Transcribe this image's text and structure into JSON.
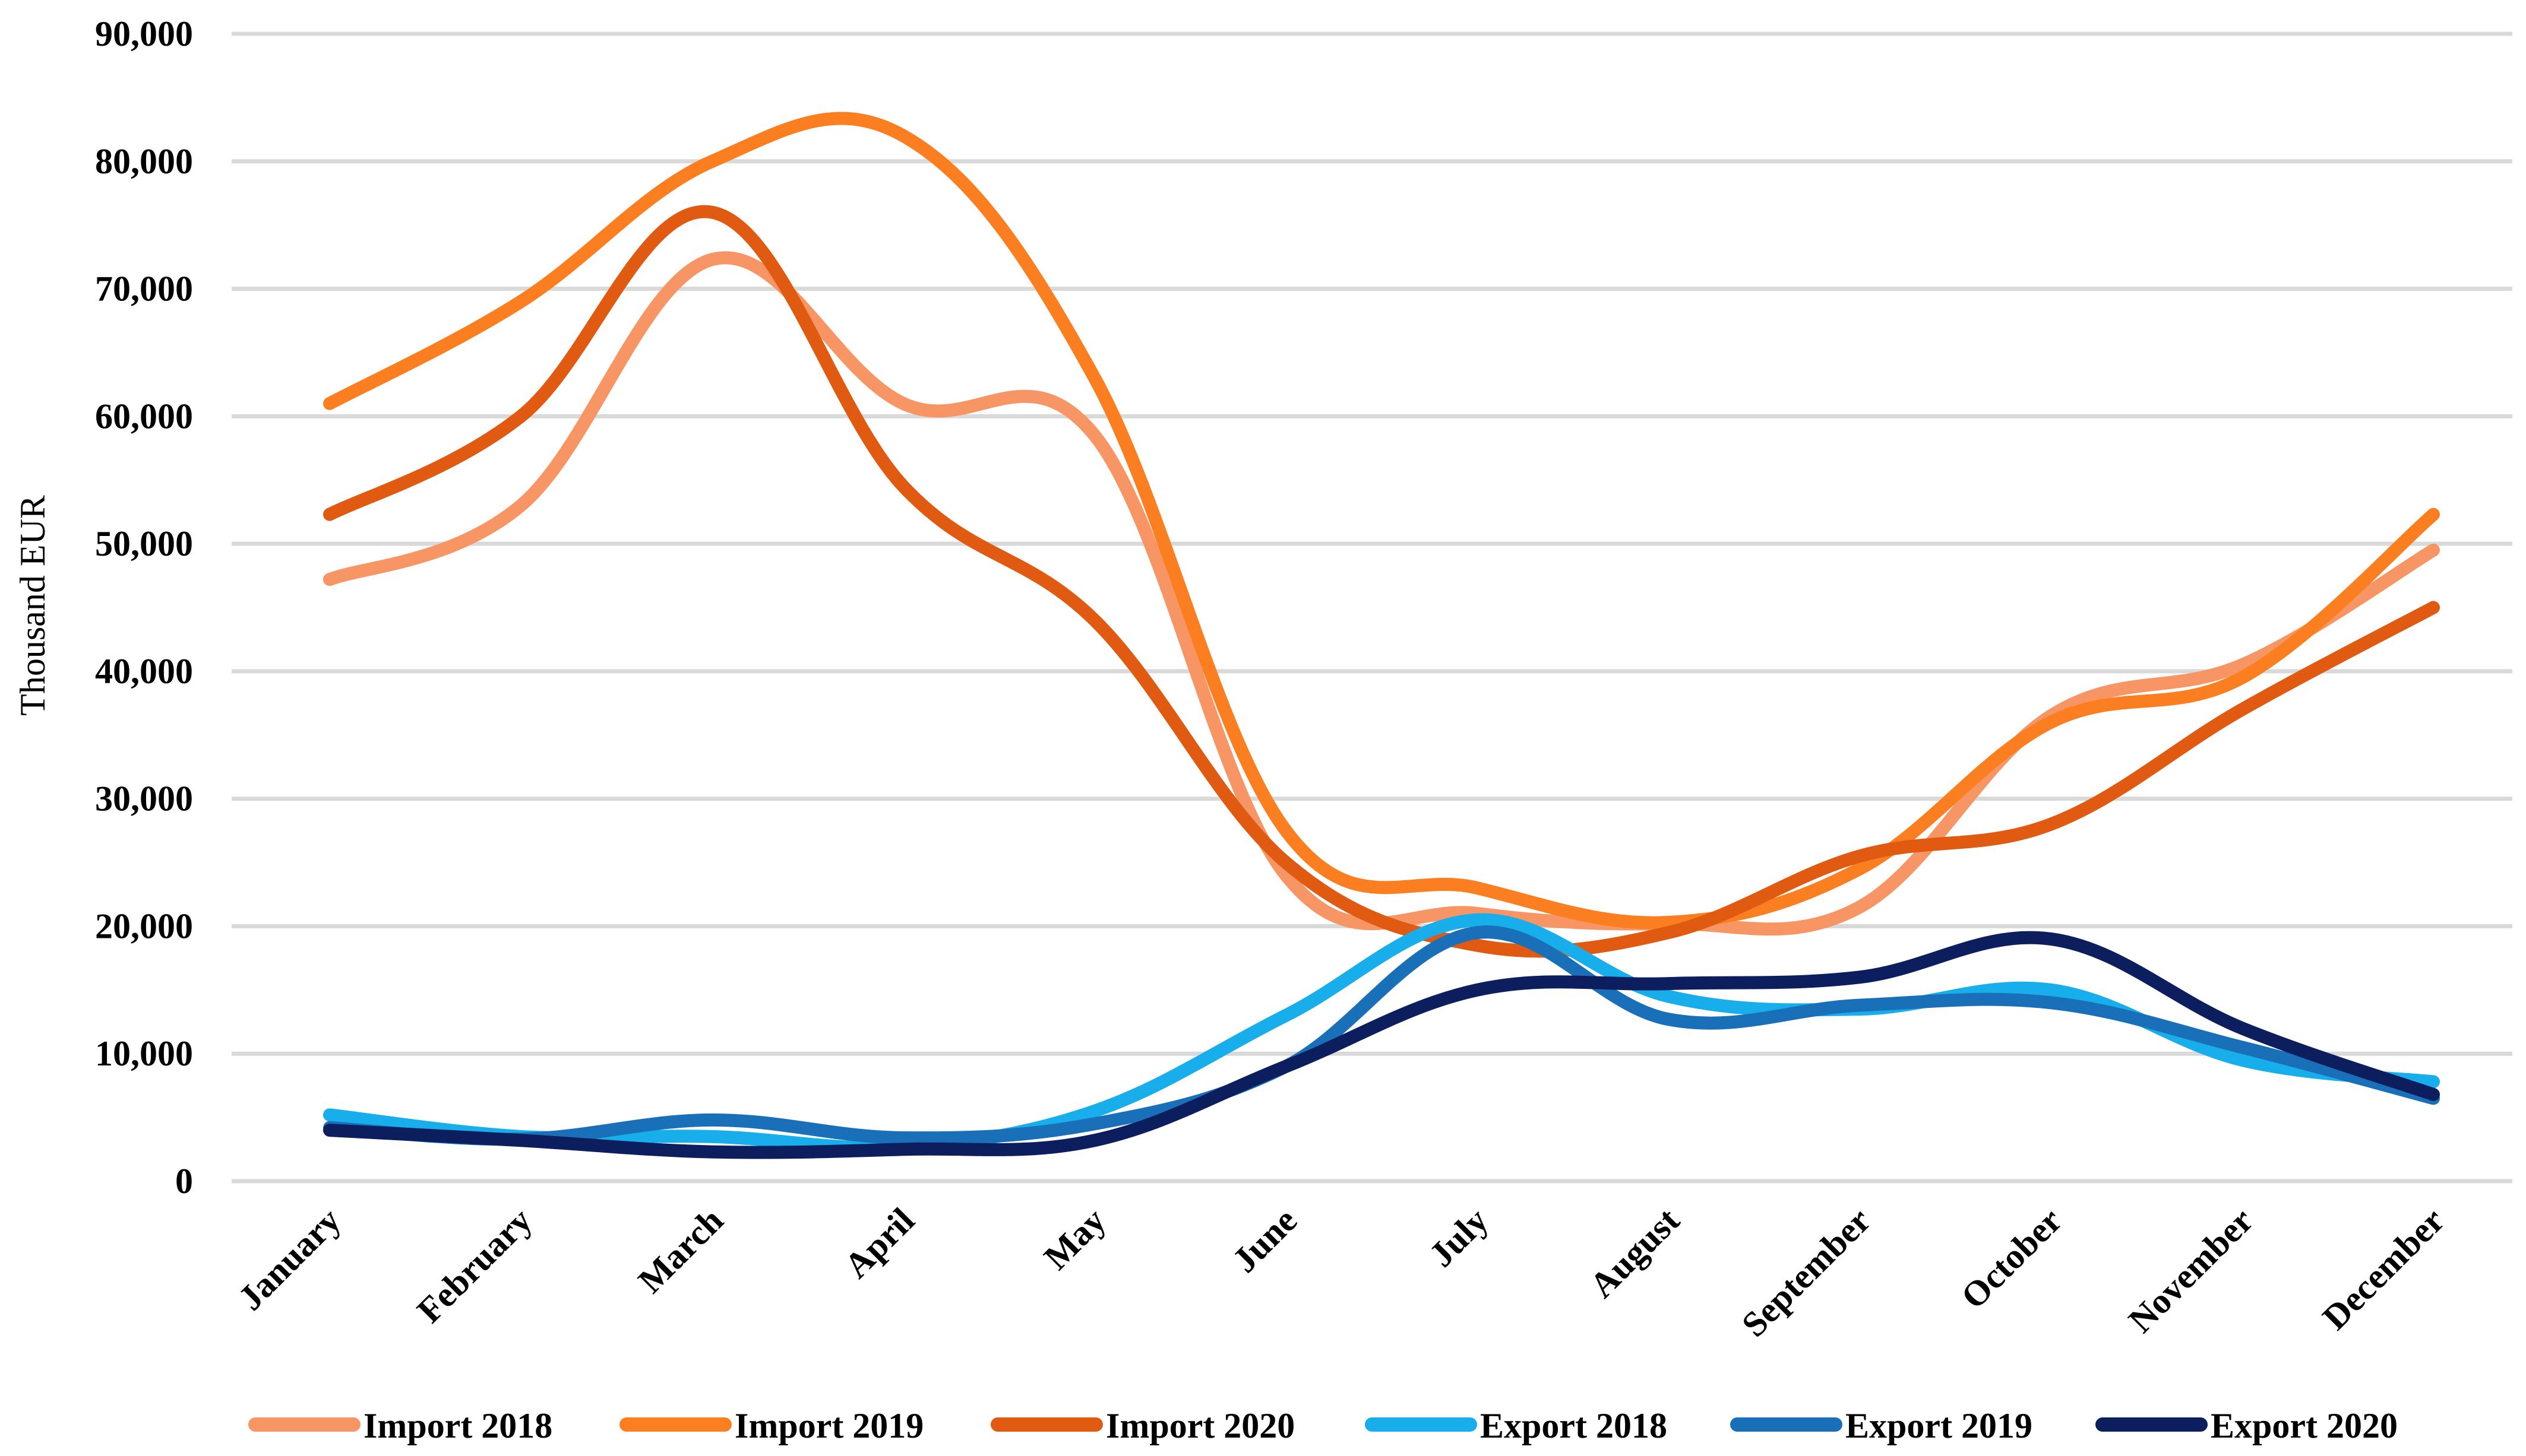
{
  "chart_data": {
    "type": "line",
    "title": "",
    "xlabel": "",
    "ylabel": "Thousand EUR",
    "ylim": [
      0,
      90000
    ],
    "yticks": [
      0,
      10000,
      20000,
      30000,
      40000,
      50000,
      60000,
      70000,
      80000,
      90000
    ],
    "ytick_labels": [
      "0",
      "10,000",
      "20,000",
      "30,000",
      "40,000",
      "50,000",
      "60,000",
      "70,000",
      "80,000",
      "90,000"
    ],
    "categories": [
      "January",
      "February",
      "March",
      "April",
      "May",
      "June",
      "July",
      "August",
      "September",
      "October",
      "November",
      "December"
    ],
    "grid": true,
    "legend_position": "bottom",
    "smooth": true,
    "series": [
      {
        "name": "Import 2018",
        "color": "#F79565",
        "values": [
          47200,
          53000,
          72300,
          61000,
          58500,
          24000,
          21000,
          20200,
          21500,
          36500,
          40500,
          49500
        ]
      },
      {
        "name": "Import 2019",
        "color": "#FB7F21",
        "values": [
          61000,
          69000,
          80000,
          82000,
          63000,
          27500,
          23000,
          20300,
          24500,
          36000,
          39500,
          52300
        ]
      },
      {
        "name": "Import 2020",
        "color": "#E05A12",
        "values": [
          52300,
          60000,
          76000,
          54500,
          44000,
          25000,
          18500,
          19500,
          25500,
          28000,
          37000,
          45000
        ]
      },
      {
        "name": "Export 2018",
        "color": "#17AEEB",
        "values": [
          5200,
          3500,
          3500,
          2700,
          5500,
          13000,
          20500,
          14500,
          13500,
          15000,
          9500,
          7800
        ]
      },
      {
        "name": "Export 2019",
        "color": "#1A70B8",
        "values": [
          4200,
          3300,
          4800,
          3400,
          4500,
          9000,
          19500,
          12700,
          13800,
          14000,
          10500,
          6500
        ]
      },
      {
        "name": "Export 2020",
        "color": "#0C1E5E",
        "values": [
          4000,
          3200,
          2300,
          2500,
          3200,
          9000,
          15000,
          15500,
          16000,
          19000,
          12000,
          6800
        ]
      }
    ]
  }
}
